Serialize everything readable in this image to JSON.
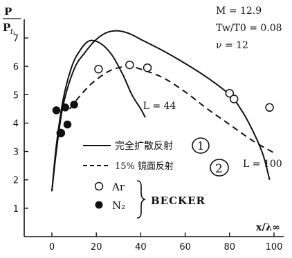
{
  "chart_data": {
    "type": "line",
    "y_label_num": "P",
    "y_label_den": "P",
    "y_label_den_sub": "f₁",
    "x_label": "x/λ∞",
    "xlim": [
      -5,
      102
    ],
    "ylim": [
      0,
      8
    ],
    "x_ticks": [
      0,
      20,
      40,
      60,
      80,
      100
    ],
    "y_ticks": [
      1,
      2,
      3,
      4,
      5,
      6,
      7
    ],
    "conditions": [
      "M = 12.9",
      "Tw/T0 = 0.08",
      "ν = 12"
    ],
    "curve_labels": [
      {
        "text": "L = 44",
        "x": 41,
        "y": 4.5
      },
      {
        "text": "L = 100",
        "x": 86,
        "y": 2.45
      }
    ],
    "series": [
      {
        "name": "完全扩散反射",
        "marker": "1",
        "style": "solid",
        "x": [
          0,
          2,
          5,
          9,
          13,
          17,
          22,
          27,
          32,
          36,
          40,
          42
        ],
        "y": [
          1.6,
          3.2,
          4.8,
          6.0,
          6.6,
          6.9,
          6.8,
          6.4,
          5.7,
          5.0,
          4.5,
          4.2
        ]
      },
      {
        "name": "完全扩散反射",
        "marker": "1",
        "style": "solid",
        "x": [
          0,
          2,
          5,
          10,
          15,
          20,
          25,
          30,
          35,
          40,
          50,
          60,
          70,
          80,
          85,
          90,
          95,
          98
        ],
        "y": [
          1.6,
          3.0,
          4.6,
          5.9,
          6.5,
          6.95,
          7.2,
          7.25,
          7.15,
          6.95,
          6.55,
          6.1,
          5.6,
          5.0,
          4.5,
          3.8,
          2.9,
          2.0
        ]
      },
      {
        "name": "15% 镜面反射",
        "marker": "2",
        "style": "dashed",
        "x": [
          8,
          12,
          18,
          25,
          30,
          35,
          40,
          50,
          60,
          70,
          80,
          90,
          100
        ],
        "y": [
          4.5,
          4.9,
          5.4,
          5.8,
          5.95,
          6.0,
          5.9,
          5.6,
          5.1,
          4.5,
          3.95,
          3.4,
          2.95
        ]
      },
      {
        "name": "Ar",
        "marker": "open-circle",
        "style": "points",
        "x": [
          4,
          21,
          35,
          43,
          80,
          82,
          98
        ],
        "y": [
          3.65,
          5.9,
          6.05,
          5.95,
          5.05,
          4.85,
          4.55
        ]
      },
      {
        "name": "N₂",
        "marker": "filled-circle",
        "style": "points",
        "x": [
          2,
          4,
          6,
          7,
          10
        ],
        "y": [
          4.45,
          3.65,
          4.55,
          3.95,
          4.65
        ]
      }
    ],
    "legend": {
      "line_items": [
        {
          "text": "完全扩散反射",
          "style": "solid",
          "number": "1"
        },
        {
          "text": "15% 镜面反射",
          "style": "dashed",
          "number": "2"
        }
      ],
      "marker_items": [
        {
          "text": "Ar",
          "marker": "open-circle"
        },
        {
          "text": "N₂",
          "marker": "filled-circle"
        }
      ],
      "group_label": "BECKER"
    }
  }
}
